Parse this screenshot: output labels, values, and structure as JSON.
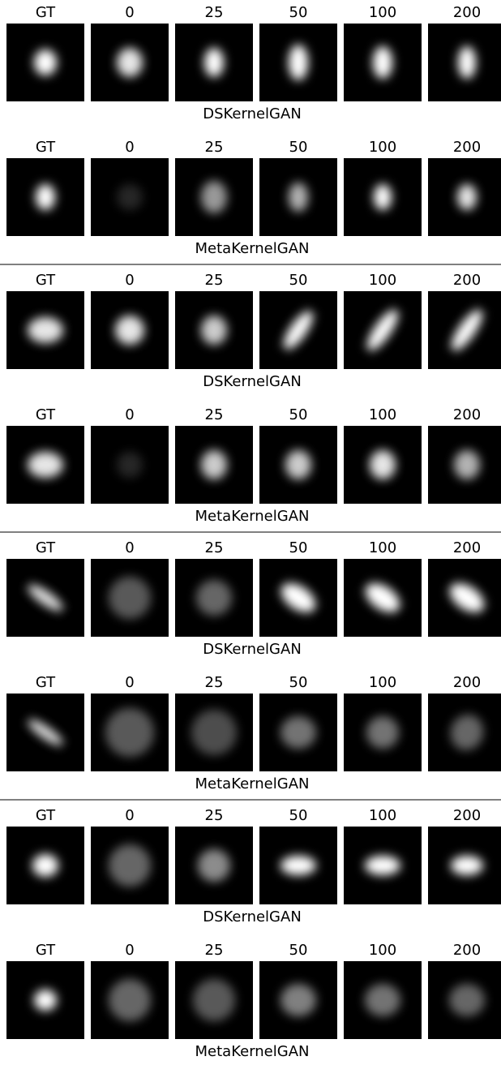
{
  "groups": [
    {
      "rows": [
        {
          "labels": [
            "GT",
            "0",
            "25",
            "50",
            "100",
            "200"
          ],
          "method": "DSKernelGAN"
        },
        {
          "labels": [
            "GT",
            "0",
            "25",
            "50",
            "100",
            "200"
          ],
          "method": "MetaKernelGAN"
        }
      ]
    },
    {
      "rows": [
        {
          "labels": [
            "GT",
            "0",
            "25",
            "50",
            "100",
            "200"
          ],
          "method": "DSKernelGAN"
        },
        {
          "labels": [
            "GT",
            "0",
            "25",
            "50",
            "100",
            "200"
          ],
          "method": "MetaKernelGAN"
        }
      ]
    },
    {
      "rows": [
        {
          "labels": [
            "GT",
            "0",
            "25",
            "50",
            "100",
            "200"
          ],
          "method": "DSKernelGAN"
        },
        {
          "labels": [
            "GT",
            "0",
            "25",
            "50",
            "100",
            "200"
          ],
          "method": "MetaKernelGAN"
        }
      ]
    },
    {
      "rows": [
        {
          "labels": [
            "GT",
            "0",
            "25",
            "50",
            "100",
            "200"
          ],
          "method": "DSKernelGAN"
        },
        {
          "labels": [
            "GT",
            "0",
            "25",
            "50",
            "100",
            "200"
          ],
          "method": "MetaKernelGAN"
        }
      ]
    }
  ]
}
